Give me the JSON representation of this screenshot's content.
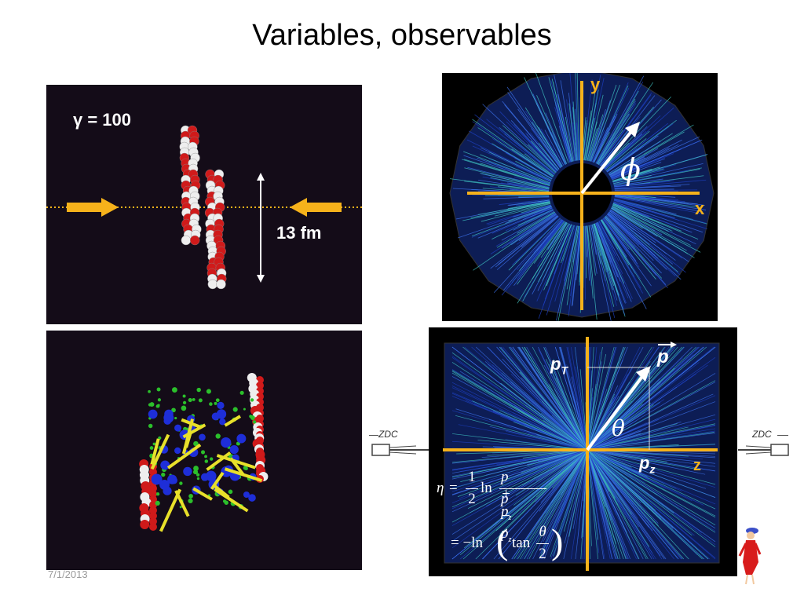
{
  "slide": {
    "title": "Variables, observables",
    "date": "7/1/2013"
  },
  "collision_panel": {
    "gamma_label": "γ = 100",
    "size_label": "13 fm"
  },
  "transverse_panel": {
    "axis_y": "y",
    "axis_x": "x",
    "angle_symbol": "ϕ"
  },
  "longitudinal_panel": {
    "momentum_label": "p",
    "pt_label": "p",
    "pt_subscript": "T",
    "pz_label": "p",
    "pz_subscript": "z",
    "axis_z": "z",
    "angle_symbol": "θ",
    "zdc_left": "ZDC",
    "zdc_right": "ZDC",
    "eta_formula": {
      "eta": "η",
      "equals": "=",
      "frac_num": "1",
      "frac_den": "2",
      "ln": "ln",
      "num_expr": "p + p",
      "den_expr": "p − p",
      "sub_z": "z",
      "line2_prefix": "= −ln",
      "tan": "tan",
      "theta": "θ",
      "two": "2"
    }
  },
  "colors": {
    "axis_orange": "#f6b21b",
    "arrow_yellow": "#f6b21b",
    "track_blue": "#2a5bd8",
    "panel_dark": "#140c18"
  },
  "icons": [
    "double-arrow-icon",
    "cartoon-figure-icon",
    "zdc-detector-icon"
  ]
}
